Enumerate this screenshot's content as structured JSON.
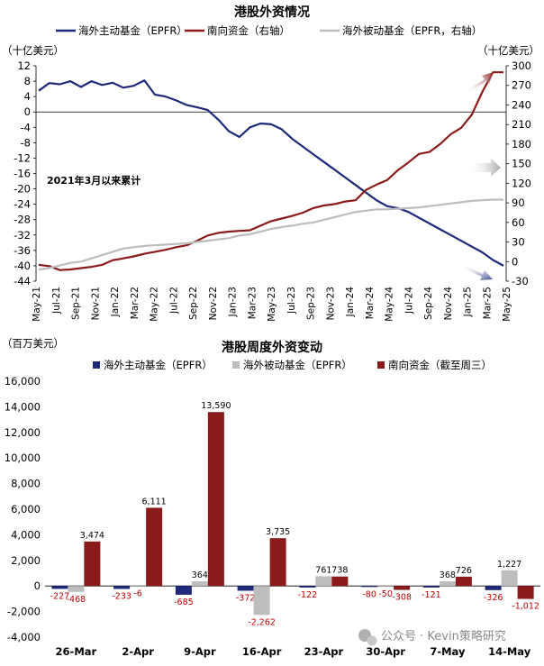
{
  "chart_data": [
    {
      "type": "line",
      "title": "港股外资情况",
      "left_unit": "（十亿美元）",
      "right_unit": "（十亿美元）",
      "annotation": "2021年3月以来累计",
      "x_ticks": [
        "May-21",
        "Jul-21",
        "Sep-21",
        "Nov-21",
        "Jan-22",
        "Mar-22",
        "May-22",
        "Jul-22",
        "Sep-22",
        "Nov-22",
        "Jan-23",
        "Mar-23",
        "May-23",
        "Jul-23",
        "Sep-23",
        "Nov-23",
        "Jan-24",
        "Mar-24",
        "May-24",
        "Jul-24",
        "Sep-24",
        "Nov-24",
        "Jan-25",
        "Mar-25",
        "May-25"
      ],
      "y_left": {
        "min": -44,
        "max": 12,
        "step": 4
      },
      "y_right": {
        "min": -30,
        "max": 300,
        "step": 30
      },
      "series": [
        {
          "name": "海外主动基金（EPFR）",
          "axis": "left",
          "color": "#1f2a7a",
          "points": [
            [
              0,
              5.5
            ],
            [
              1,
              7.5
            ],
            [
              2,
              7.2
            ],
            [
              3,
              8.0
            ],
            [
              4,
              6.5
            ],
            [
              5,
              8.0
            ],
            [
              6,
              7.0
            ],
            [
              7,
              7.6
            ],
            [
              8,
              6.3
            ],
            [
              9,
              6.8
            ],
            [
              10,
              8.2
            ],
            [
              11,
              4.5
            ],
            [
              12,
              4.0
            ],
            [
              13,
              3.0
            ],
            [
              14,
              1.8
            ],
            [
              15,
              1.2
            ],
            [
              16,
              0.5
            ],
            [
              17,
              -2
            ],
            [
              18,
              -5
            ],
            [
              19,
              -6.5
            ],
            [
              20,
              -4
            ],
            [
              21,
              -3
            ],
            [
              22,
              -3.2
            ],
            [
              23,
              -4.5
            ],
            [
              24,
              -7
            ],
            [
              25,
              -9
            ],
            [
              26,
              -11
            ],
            [
              27,
              -13
            ],
            [
              28,
              -15
            ],
            [
              29,
              -17
            ],
            [
              30,
              -19
            ],
            [
              31,
              -21
            ],
            [
              32,
              -23
            ],
            [
              33,
              -24.5
            ],
            [
              34,
              -25
            ],
            [
              35,
              -26
            ],
            [
              36,
              -27.5
            ],
            [
              37,
              -29
            ],
            [
              38,
              -30.5
            ],
            [
              39,
              -32
            ],
            [
              40,
              -33.5
            ],
            [
              41,
              -35
            ],
            [
              42,
              -36.5
            ],
            [
              43,
              -38.5
            ],
            [
              44,
              -40
            ]
          ]
        },
        {
          "name": "南向资金（右轴）",
          "axis": "right",
          "color": "#8b1a1a",
          "points": [
            [
              0,
              -5
            ],
            [
              1,
              -7
            ],
            [
              2,
              -13
            ],
            [
              3,
              -12
            ],
            [
              4,
              -10
            ],
            [
              5,
              -8
            ],
            [
              6,
              -5
            ],
            [
              7,
              2
            ],
            [
              8,
              5
            ],
            [
              9,
              8
            ],
            [
              10,
              12
            ],
            [
              11,
              15
            ],
            [
              12,
              18
            ],
            [
              13,
              22
            ],
            [
              14,
              25
            ],
            [
              15,
              32
            ],
            [
              16,
              40
            ],
            [
              17,
              44
            ],
            [
              18,
              46
            ],
            [
              19,
              47
            ],
            [
              20,
              48
            ],
            [
              21,
              55
            ],
            [
              22,
              62
            ],
            [
              23,
              66
            ],
            [
              24,
              70
            ],
            [
              25,
              75
            ],
            [
              26,
              82
            ],
            [
              27,
              86
            ],
            [
              28,
              88
            ],
            [
              29,
              92
            ],
            [
              30,
              94
            ],
            [
              31,
              110
            ],
            [
              32,
              118
            ],
            [
              33,
              125
            ],
            [
              34,
              140
            ],
            [
              35,
              152
            ],
            [
              36,
              165
            ],
            [
              37,
              168
            ],
            [
              38,
              180
            ],
            [
              39,
              195
            ],
            [
              40,
              205
            ],
            [
              41,
              225
            ],
            [
              42,
              260
            ],
            [
              43,
              290
            ],
            [
              44,
              290
            ]
          ]
        },
        {
          "name": "海外被动基金（EPFR，右轴）",
          "axis": "right",
          "color": "#bdbdbd",
          "points": [
            [
              0,
              -12
            ],
            [
              1,
              -10
            ],
            [
              2,
              -6
            ],
            [
              3,
              -2
            ],
            [
              4,
              0
            ],
            [
              5,
              5
            ],
            [
              6,
              10
            ],
            [
              7,
              15
            ],
            [
              8,
              20
            ],
            [
              9,
              22
            ],
            [
              10,
              24
            ],
            [
              11,
              25
            ],
            [
              12,
              26
            ],
            [
              13,
              27
            ],
            [
              14,
              28
            ],
            [
              15,
              30
            ],
            [
              16,
              32
            ],
            [
              17,
              34
            ],
            [
              18,
              36
            ],
            [
              19,
              40
            ],
            [
              20,
              42
            ],
            [
              21,
              46
            ],
            [
              22,
              50
            ],
            [
              23,
              53
            ],
            [
              24,
              55
            ],
            [
              25,
              58
            ],
            [
              26,
              60
            ],
            [
              27,
              64
            ],
            [
              28,
              68
            ],
            [
              29,
              72
            ],
            [
              30,
              76
            ],
            [
              31,
              78
            ],
            [
              32,
              80
            ],
            [
              33,
              80
            ],
            [
              34,
              81
            ],
            [
              35,
              82
            ],
            [
              36,
              83
            ],
            [
              37,
              85
            ],
            [
              38,
              87
            ],
            [
              39,
              89
            ],
            [
              40,
              91
            ],
            [
              41,
              93
            ],
            [
              42,
              94
            ],
            [
              43,
              95
            ],
            [
              44,
              95
            ]
          ]
        }
      ]
    },
    {
      "type": "bar",
      "title": "港股周度外资变动",
      "unit": "（百万美元）",
      "categories": [
        "26-Mar",
        "2-Apr",
        "9-Apr",
        "16-Apr",
        "23-Apr",
        "30-Apr",
        "7-May",
        "14-May"
      ],
      "y_ticks": [
        "16,000",
        "14,000",
        "12,000",
        "10,000",
        "8,000",
        "6,000",
        "4,000",
        "2,000",
        "0",
        "-2,000",
        "-4,000"
      ],
      "ylim": [
        -4000,
        16000
      ],
      "series": [
        {
          "name": "海外主动基金（EPFR）",
          "color": "#1f2a7a",
          "values": [
            -227,
            -233,
            -685,
            -372,
            -122,
            -80,
            -121,
            -326
          ],
          "labels": [
            "-227",
            "-233",
            "-685",
            "-372",
            "-122",
            "-80",
            "-121",
            "-326"
          ]
        },
        {
          "name": "海外被动基金（EPFR）",
          "color": "#bdbdbd",
          "values": [
            -468,
            -6,
            364,
            -2262,
            761,
            -50,
            368,
            1227
          ],
          "labels": [
            "-468",
            "-6",
            "364",
            "-2,262",
            "761",
            "-50",
            "368",
            "1,227"
          ]
        },
        {
          "name": "南向资金（截至周三）",
          "color": "#8b1a1a",
          "values": [
            3474,
            6111,
            13590,
            3735,
            738,
            -308,
            726,
            -1012
          ],
          "labels": [
            "3,474",
            "6,111",
            "13,590",
            "3,735",
            "738",
            "-308",
            "726",
            "-1,012"
          ]
        }
      ]
    }
  ],
  "watermark": "公众号 · Kevin策略研究"
}
